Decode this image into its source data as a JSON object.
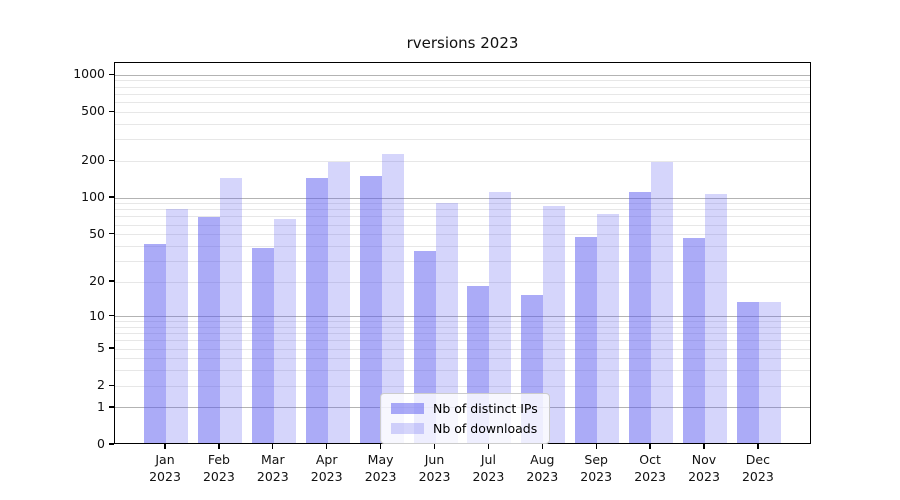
{
  "chart_data": {
    "type": "bar",
    "title": "rversions 2023",
    "categories": [
      "Jan",
      "Feb",
      "Mar",
      "Apr",
      "May",
      "Jun",
      "Jul",
      "Aug",
      "Sep",
      "Oct",
      "Nov",
      "Dec"
    ],
    "year_label": "2023",
    "series": [
      {
        "name": "Nb of distinct IPs",
        "color": "#5757F0",
        "alpha": 0.5,
        "values": [
          40,
          68,
          37,
          140,
          145,
          35,
          18,
          15,
          46,
          108,
          45,
          13
        ]
      },
      {
        "name": "Nb of downloads",
        "color": "#5757F0",
        "alpha": 0.25,
        "values": [
          78,
          142,
          65,
          189,
          223,
          88,
          108,
          83,
          71,
          189,
          105,
          13
        ]
      }
    ],
    "yscale": "log1p",
    "ylim": [
      0,
      1260
    ],
    "yticks": [
      0,
      1,
      2,
      5,
      10,
      20,
      50,
      100,
      200,
      500,
      1000
    ],
    "grid": "both",
    "grid_major_values": [
      1,
      10,
      100,
      1000
    ],
    "legend_position": "lower center",
    "colors": {
      "grid_major": "#b3b3b3",
      "grid_minor": "#e7e7e7",
      "axis": "#000000",
      "text": "#111111"
    }
  }
}
